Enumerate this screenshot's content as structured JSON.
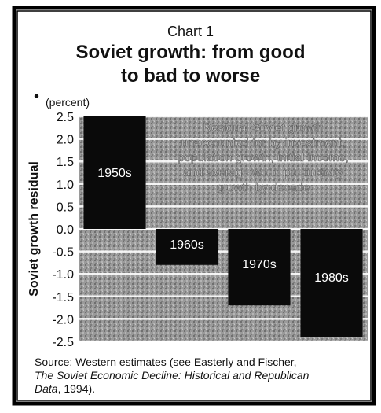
{
  "header": {
    "chart_number": "Chart 1",
    "title_line1": "Soviet growth: from good",
    "title_line2": "to bad to worse"
  },
  "unit_label": "(percent)",
  "source": {
    "line1": "Source: Western estimates (see Easterly and Fischer,",
    "line2": "The Soviet Economic Decline: Historical and Republican",
    "line3_italic": "Data",
    "line3_rest": ", 1994)."
  },
  "annotation": "Residual Soviet growth unaccounted for by investment, population growth, initial income, and average world productivity growth by decade",
  "colors": {
    "bar": "#0a0a0a",
    "background_texture": "#8a8a8a",
    "border": "#000000",
    "text_on_bar": "#ffffff"
  },
  "chart_data": {
    "type": "bar",
    "categories": [
      "1950s",
      "1960s",
      "1970s",
      "1980s"
    ],
    "series": [
      {
        "values": [
          2.5,
          -0.8,
          -1.7,
          -2.4
        ]
      }
    ],
    "ylabel": "Soviet growth residual",
    "ylim": [
      -2.5,
      2.5
    ],
    "yticks": [
      "2.5",
      "2.0",
      "1.5",
      "1.0",
      "0.5",
      "0.0",
      "-0.5",
      "-1.0",
      "-1.5",
      "-2.0",
      "-2.5"
    ],
    "grid": true,
    "legend": "none"
  }
}
